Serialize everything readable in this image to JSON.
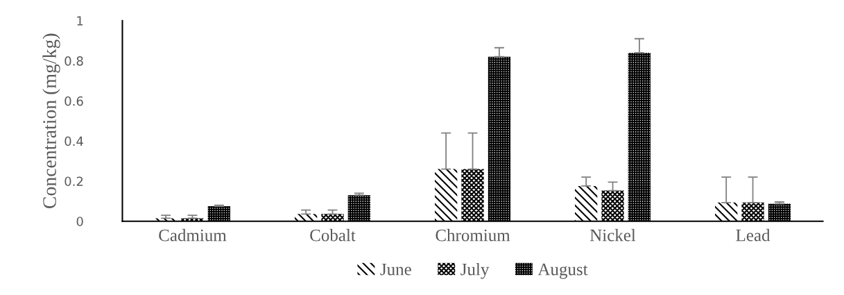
{
  "chart_data": {
    "type": "bar",
    "ylabel": "Concentration (mg/kg)",
    "categories": [
      "Cadmium",
      "Cobalt",
      "Chromium",
      "Nickel",
      "Lead"
    ],
    "series": [
      {
        "name": "June",
        "color": "#000000",
        "values": [
          0.015,
          0.036,
          0.26,
          0.176,
          0.093
        ],
        "errors": [
          [
            0.015,
            0.03
          ],
          [
            0.036,
            0.056
          ],
          [
            0.26,
            0.44
          ],
          [
            0.176,
            0.22
          ],
          [
            0.093,
            0.22
          ]
        ]
      },
      {
        "name": "July",
        "color": "#000000",
        "values": [
          0.015,
          0.036,
          0.26,
          0.153,
          0.093
        ],
        "errors": [
          [
            0.015,
            0.03
          ],
          [
            0.036,
            0.056
          ],
          [
            0.26,
            0.44
          ],
          [
            0.153,
            0.195
          ],
          [
            0.093,
            0.22
          ]
        ]
      },
      {
        "name": "August",
        "color": "#000000",
        "values": [
          0.075,
          0.13,
          0.82,
          0.84,
          0.087
        ],
        "errors": [
          [
            0.075,
            0.08
          ],
          [
            0.13,
            0.14
          ],
          [
            0.82,
            0.865
          ],
          [
            0.84,
            0.91
          ],
          [
            0.087,
            0.096
          ]
        ]
      }
    ],
    "ylim": [
      0,
      1
    ],
    "yticks": [
      0,
      0.2,
      0.4,
      0.6,
      0.8,
      1
    ],
    "grid": false,
    "legend": "bottom"
  }
}
